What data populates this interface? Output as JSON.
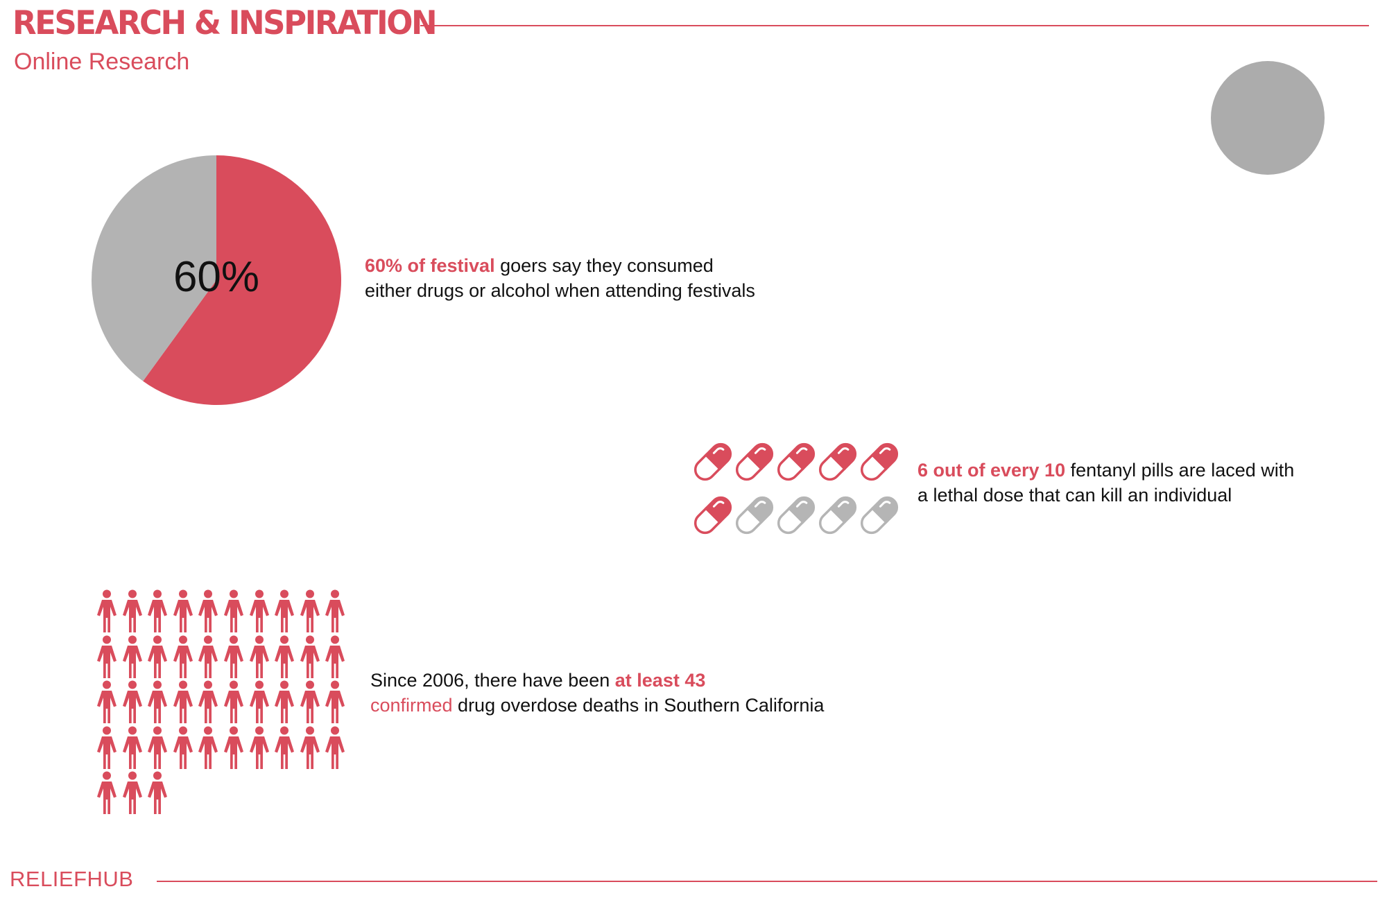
{
  "header": {
    "title": "RESEARCH & INSPIRATION",
    "subtitle": "Online Research"
  },
  "colors": {
    "accent": "#d94c5c",
    "neutral": "#b3b3b3",
    "pill_gray": "#b5b5b5"
  },
  "chart_data": [
    {
      "type": "pie",
      "values": [
        60,
        40
      ],
      "center_label": "60%"
    },
    {
      "type": "pictograph",
      "icon": "pill-icon",
      "total": 10,
      "highlighted": 6,
      "per_row": 5
    },
    {
      "type": "pictograph",
      "icon": "person-icon",
      "total": 43,
      "highlighted": 43,
      "per_row": 10
    }
  ],
  "stats": {
    "festival": {
      "highlight": "60% of festival",
      "rest": " goers say they consumed",
      "line2": "either drugs or alcohol when attending festivals"
    },
    "fentanyl": {
      "highlight": "6 out of every 10",
      "rest": " fentanyl pills are laced with",
      "line2": "a lethal dose that can kill an individual"
    },
    "overdose": {
      "lead": "Since 2006, there have been ",
      "highlight": "at least 43",
      "highlight2": "confirmed",
      "rest": " drug overdose deaths in Southern California"
    }
  },
  "footer": {
    "brand": "RELIEFHUB"
  }
}
